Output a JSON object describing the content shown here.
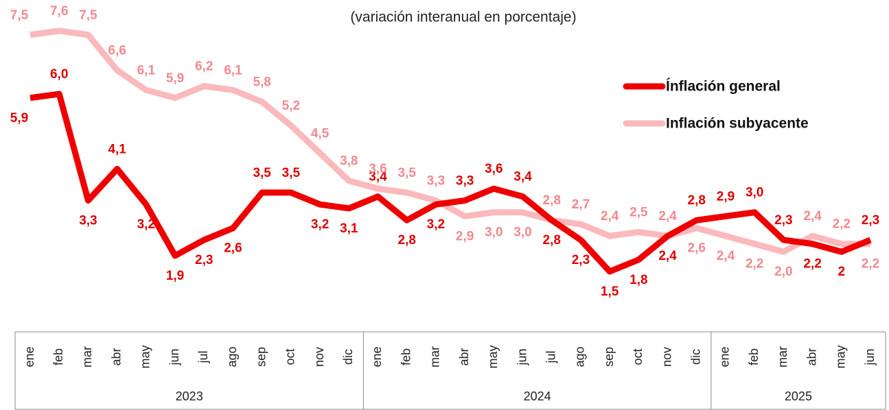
{
  "chart_data": {
    "type": "line",
    "subtitle": "(variación interanual en porcentaje)",
    "groups": [
      {
        "year": "2023",
        "months": [
          "ene",
          "feb",
          "mar",
          "abr",
          "may",
          "jun",
          "jul",
          "ago",
          "sep",
          "oct",
          "nov",
          "dic"
        ]
      },
      {
        "year": "2024",
        "months": [
          "ene",
          "feb",
          "mar",
          "abr",
          "may",
          "jun",
          "jul",
          "ago",
          "sep",
          "oct",
          "nov",
          "dic"
        ]
      },
      {
        "year": "2025",
        "months": [
          "ene",
          "feb",
          "mar",
          "abr",
          "may",
          "jun"
        ]
      }
    ],
    "series": [
      {
        "name": "Ínflación general",
        "color": "#ee0000",
        "label_color": "#e00000",
        "values": [
          5.9,
          6.0,
          3.3,
          4.1,
          3.2,
          1.9,
          2.3,
          2.6,
          3.5,
          3.5,
          3.2,
          3.1,
          3.4,
          2.8,
          3.2,
          3.3,
          3.6,
          3.4,
          2.8,
          2.3,
          1.5,
          1.8,
          2.4,
          2.8,
          2.9,
          3.0,
          2.3,
          2.2,
          2,
          2.3
        ],
        "value_labels": [
          "5,9",
          "6,0",
          "3,3",
          "4,1",
          "3,2",
          "1,9",
          "2,3",
          "2,6",
          "3,5",
          "3,5",
          "3,2",
          "3,1",
          "3,4",
          "2,8",
          "3,2",
          "3,3",
          "3,6",
          "3,4",
          "2,8",
          "2,3",
          "1,5",
          "1,8",
          "2,4",
          "2,8",
          "2,9",
          "3,0",
          "2,3",
          "2,2",
          "2",
          "2,3"
        ]
      },
      {
        "name": "Inflación subyacente",
        "color": "#fbb9bc",
        "label_color": "#f2898f",
        "values": [
          7.5,
          7.6,
          7.5,
          6.6,
          6.1,
          5.9,
          6.2,
          6.1,
          5.8,
          5.2,
          4.5,
          3.8,
          3.6,
          3.5,
          3.3,
          2.9,
          3.0,
          3.0,
          2.8,
          2.7,
          2.4,
          2.5,
          2.4,
          2.6,
          2.4,
          2.2,
          2.0,
          2.4,
          2.2,
          2.2
        ],
        "value_labels": [
          "7,5",
          "7,6",
          "7,5",
          "6,6",
          "6,1",
          "5,9",
          "6,2",
          "6,1",
          "5,8",
          "5,2",
          "4,5",
          "3,8",
          "3,6",
          "3,5",
          "3,3",
          "2,9",
          "3,0",
          "3,0",
          "2,8",
          "2,7",
          "2,4",
          "2,5",
          "2,4",
          "2,6",
          "2,4",
          "2,2",
          "2,0",
          "2,4",
          "2,2",
          "2,2"
        ]
      }
    ]
  }
}
